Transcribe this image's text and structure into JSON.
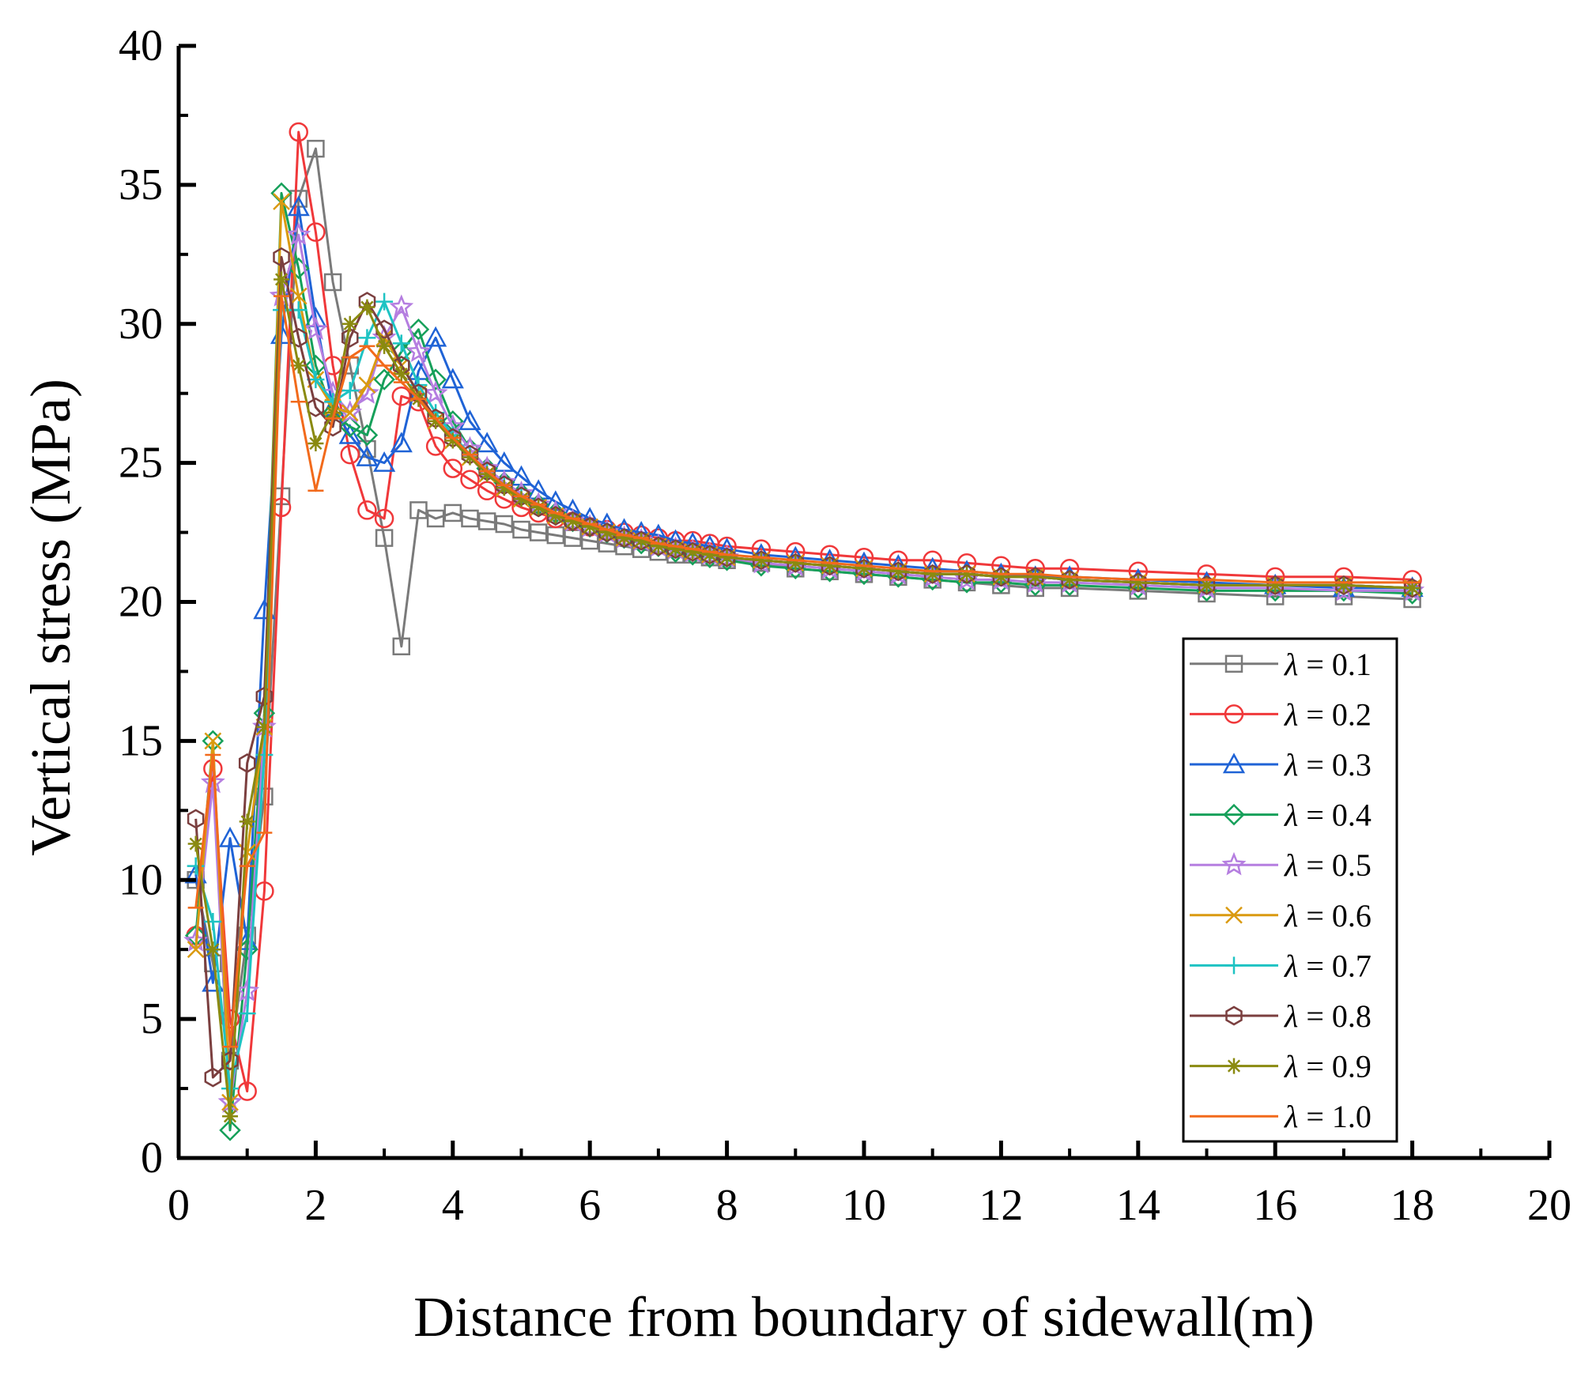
{
  "chart_data": {
    "type": "line",
    "title": "",
    "xlabel": "Distance from boundary of sidewall(m)",
    "ylabel": "Vertical stress (MPa)",
    "xlim": [
      0,
      20
    ],
    "ylim": [
      0,
      40
    ],
    "x_ticks": [
      0,
      2,
      4,
      6,
      8,
      10,
      12,
      14,
      16,
      18,
      20
    ],
    "y_ticks": [
      0,
      5,
      10,
      15,
      20,
      25,
      30,
      35,
      40
    ],
    "legend_position": "bottom-right",
    "series": [
      {
        "name": "λ = 0.1",
        "symbol": "λ",
        "value_label": " = 0.1",
        "color": "#7a7a7a",
        "marker": "square",
        "x": [
          0.25,
          0.5,
          0.75,
          1.0,
          1.25,
          1.5,
          1.75,
          2.0,
          2.25,
          2.5,
          2.75,
          3.0,
          3.25,
          3.5,
          3.75,
          4.0,
          4.25,
          4.5,
          4.75,
          5.0,
          5.25,
          5.5,
          5.75,
          6.0,
          6.25,
          6.5,
          6.75,
          7.0,
          7.25,
          7.5,
          7.75,
          8.0,
          8.5,
          9.0,
          9.5,
          10.0,
          10.5,
          11.0,
          11.5,
          12.0,
          12.5,
          13.0,
          14.0,
          15.0,
          16.0,
          17.0,
          18.0
        ],
        "y": [
          10.0,
          7.0,
          3.5,
          8.0,
          13.0,
          23.8,
          34.5,
          36.3,
          31.5,
          28.5,
          25.5,
          22.3,
          18.4,
          23.3,
          23.0,
          23.2,
          23.0,
          22.9,
          22.8,
          22.6,
          22.5,
          22.4,
          22.3,
          22.2,
          22.1,
          22.0,
          21.9,
          21.8,
          21.7,
          21.7,
          21.6,
          21.5,
          21.4,
          21.2,
          21.1,
          21.0,
          20.9,
          20.8,
          20.7,
          20.6,
          20.5,
          20.5,
          20.4,
          20.3,
          20.2,
          20.2,
          20.1
        ]
      },
      {
        "name": "λ = 0.2",
        "symbol": "λ",
        "value_label": " = 0.2",
        "color": "#f0383a",
        "marker": "circle",
        "x": [
          0.25,
          0.5,
          0.75,
          1.0,
          1.25,
          1.5,
          1.75,
          2.0,
          2.25,
          2.5,
          2.75,
          3.0,
          3.25,
          3.5,
          3.75,
          4.0,
          4.25,
          4.5,
          4.75,
          5.0,
          5.25,
          5.5,
          5.75,
          6.0,
          6.25,
          6.5,
          6.75,
          7.0,
          7.25,
          7.5,
          7.75,
          8.0,
          8.5,
          9.0,
          9.5,
          10.0,
          10.5,
          11.0,
          11.5,
          12.0,
          12.5,
          13.0,
          14.0,
          15.0,
          16.0,
          17.0,
          18.0
        ],
        "y": [
          8.0,
          14.0,
          5.0,
          2.4,
          9.6,
          23.4,
          36.9,
          33.3,
          28.5,
          25.3,
          23.3,
          23.0,
          27.4,
          27.2,
          25.6,
          24.8,
          24.4,
          24.0,
          23.7,
          23.4,
          23.2,
          23.0,
          22.9,
          22.7,
          22.6,
          22.5,
          22.4,
          22.3,
          22.2,
          22.2,
          22.1,
          22.0,
          21.9,
          21.8,
          21.7,
          21.6,
          21.5,
          21.5,
          21.4,
          21.3,
          21.2,
          21.2,
          21.1,
          21.0,
          20.9,
          20.9,
          20.8
        ]
      },
      {
        "name": "λ = 0.3",
        "symbol": "λ",
        "value_label": " = 0.3",
        "color": "#1f63d6",
        "marker": "triangle",
        "x": [
          0.25,
          0.5,
          0.75,
          1.0,
          1.25,
          1.5,
          1.75,
          2.0,
          2.25,
          2.5,
          2.75,
          3.0,
          3.25,
          3.5,
          3.75,
          4.0,
          4.25,
          4.5,
          4.75,
          5.0,
          5.25,
          5.5,
          5.75,
          6.0,
          6.25,
          6.5,
          6.75,
          7.0,
          7.25,
          7.5,
          7.75,
          8.0,
          8.5,
          9.0,
          9.5,
          10.0,
          10.5,
          11.0,
          11.5,
          12.0,
          12.5,
          13.0,
          14.0,
          15.0,
          16.0,
          17.0,
          18.0
        ],
        "y": [
          10.2,
          6.3,
          11.5,
          7.8,
          19.7,
          29.6,
          34.2,
          30.2,
          27.0,
          26.0,
          25.2,
          25.0,
          25.7,
          28.3,
          29.5,
          28.0,
          26.5,
          25.7,
          25.0,
          24.5,
          24.0,
          23.6,
          23.3,
          23.0,
          22.8,
          22.6,
          22.5,
          22.4,
          22.2,
          22.1,
          22.0,
          21.9,
          21.7,
          21.6,
          21.5,
          21.4,
          21.3,
          21.2,
          21.1,
          21.0,
          20.9,
          20.9,
          20.8,
          20.7,
          20.6,
          20.5,
          20.5
        ]
      },
      {
        "name": "λ = 0.4",
        "symbol": "λ",
        "value_label": " = 0.4",
        "color": "#16a05a",
        "marker": "diamond",
        "x": [
          0.25,
          0.5,
          0.75,
          1.0,
          1.25,
          1.5,
          1.75,
          2.0,
          2.25,
          2.5,
          2.75,
          3.0,
          3.25,
          3.5,
          3.75,
          4.0,
          4.25,
          4.5,
          4.75,
          5.0,
          5.25,
          5.5,
          5.75,
          6.0,
          6.25,
          6.5,
          6.75,
          7.0,
          7.25,
          7.5,
          7.75,
          8.0,
          8.5,
          9.0,
          9.5,
          10.0,
          10.5,
          11.0,
          11.5,
          12.0,
          12.5,
          13.0,
          14.0,
          15.0,
          16.0,
          17.0,
          18.0
        ],
        "y": [
          8.0,
          15.0,
          1.0,
          7.5,
          16.0,
          34.7,
          32.0,
          28.5,
          26.8,
          26.3,
          26.0,
          28.0,
          29.0,
          29.8,
          28.0,
          26.5,
          25.5,
          24.8,
          24.3,
          23.9,
          23.5,
          23.2,
          22.9,
          22.7,
          22.5,
          22.3,
          22.1,
          22.0,
          21.8,
          21.7,
          21.6,
          21.5,
          21.3,
          21.2,
          21.1,
          21.0,
          20.9,
          20.8,
          20.7,
          20.7,
          20.6,
          20.6,
          20.5,
          20.4,
          20.4,
          20.4,
          20.3
        ]
      },
      {
        "name": "λ = 0.5",
        "symbol": "λ",
        "value_label": " = 0.5",
        "color": "#b57ee0",
        "marker": "star",
        "x": [
          0.25,
          0.5,
          0.75,
          1.0,
          1.25,
          1.5,
          1.75,
          2.0,
          2.25,
          2.5,
          2.75,
          3.0,
          3.25,
          3.5,
          3.75,
          4.0,
          4.25,
          4.5,
          4.75,
          5.0,
          5.25,
          5.5,
          5.75,
          6.0,
          6.25,
          6.5,
          6.75,
          7.0,
          7.25,
          7.5,
          7.75,
          8.0,
          8.5,
          9.0,
          9.5,
          10.0,
          10.5,
          11.0,
          11.5,
          12.0,
          12.5,
          13.0,
          14.0,
          15.0,
          16.0,
          17.0,
          18.0
        ],
        "y": [
          7.8,
          13.5,
          2.0,
          6.0,
          15.5,
          31.0,
          33.2,
          29.8,
          27.5,
          26.8,
          27.5,
          29.5,
          30.6,
          29.0,
          27.5,
          26.3,
          25.5,
          24.8,
          24.3,
          23.9,
          23.5,
          23.2,
          22.9,
          22.7,
          22.5,
          22.3,
          22.2,
          22.0,
          21.9,
          21.8,
          21.7,
          21.6,
          21.4,
          21.3,
          21.2,
          21.1,
          21.0,
          20.9,
          20.8,
          20.8,
          20.7,
          20.7,
          20.6,
          20.5,
          20.5,
          20.4,
          20.4
        ]
      },
      {
        "name": "λ = 0.6",
        "symbol": "λ",
        "value_label": " = 0.6",
        "color": "#da9a10",
        "marker": "x",
        "x": [
          0.25,
          0.5,
          0.75,
          1.0,
          1.25,
          1.5,
          1.75,
          2.0,
          2.25,
          2.5,
          2.75,
          3.0,
          3.25,
          3.5,
          3.75,
          4.0,
          4.25,
          4.5,
          4.75,
          5.0,
          5.25,
          5.5,
          5.75,
          6.0,
          6.25,
          6.5,
          6.75,
          7.0,
          7.25,
          7.5,
          7.75,
          8.0,
          8.5,
          9.0,
          9.5,
          10.0,
          10.5,
          11.0,
          11.5,
          12.0,
          12.5,
          13.0,
          14.0,
          15.0,
          16.0,
          17.0,
          18.0
        ],
        "y": [
          7.5,
          15.0,
          2.0,
          11.0,
          15.5,
          34.4,
          31.0,
          28.0,
          27.0,
          26.8,
          27.8,
          29.5,
          28.5,
          27.5,
          26.5,
          25.8,
          25.2,
          24.6,
          24.1,
          23.7,
          23.4,
          23.1,
          22.9,
          22.7,
          22.5,
          22.3,
          22.2,
          22.0,
          21.9,
          21.8,
          21.7,
          21.6,
          21.5,
          21.4,
          21.3,
          21.2,
          21.1,
          21.0,
          21.0,
          20.9,
          20.9,
          20.8,
          20.7,
          20.6,
          20.6,
          20.6,
          20.5
        ]
      },
      {
        "name": "λ = 0.7",
        "symbol": "λ",
        "value_label": " = 0.7",
        "color": "#1ec3c3",
        "marker": "plus",
        "x": [
          0.25,
          0.5,
          0.75,
          1.0,
          1.25,
          1.5,
          1.75,
          2.0,
          2.25,
          2.5,
          2.75,
          3.0,
          3.25,
          3.5,
          3.75,
          4.0,
          4.25,
          4.5,
          4.75,
          5.0,
          5.25,
          5.5,
          5.75,
          6.0,
          6.25,
          6.5,
          6.75,
          7.0,
          7.25,
          7.5,
          7.75,
          8.0,
          8.5,
          9.0,
          9.5,
          10.0,
          10.5,
          11.0,
          11.5,
          12.0,
          12.5,
          13.0,
          14.0,
          15.0,
          16.0,
          17.0,
          18.0
        ],
        "y": [
          10.5,
          8.5,
          2.5,
          5.2,
          14.5,
          30.5,
          30.5,
          28.0,
          27.2,
          27.6,
          29.5,
          30.8,
          29.3,
          27.8,
          26.8,
          26.0,
          25.3,
          24.7,
          24.2,
          23.8,
          23.4,
          23.1,
          22.9,
          22.7,
          22.5,
          22.3,
          22.2,
          22.0,
          21.9,
          21.8,
          21.7,
          21.6,
          21.5,
          21.4,
          21.3,
          21.2,
          21.1,
          21.0,
          21.0,
          20.9,
          20.9,
          20.8,
          20.7,
          20.6,
          20.6,
          20.6,
          20.5
        ]
      },
      {
        "name": "λ = 0.8",
        "symbol": "λ",
        "value_label": " = 0.8",
        "color": "#7b3f3f",
        "marker": "hexagon",
        "x": [
          0.25,
          0.5,
          0.75,
          1.0,
          1.25,
          1.5,
          1.75,
          2.0,
          2.25,
          2.5,
          2.75,
          3.0,
          3.25,
          3.5,
          3.75,
          4.0,
          4.25,
          4.5,
          4.75,
          5.0,
          5.25,
          5.5,
          5.75,
          6.0,
          6.25,
          6.5,
          6.75,
          7.0,
          7.25,
          7.5,
          7.75,
          8.0,
          8.5,
          9.0,
          9.5,
          10.0,
          10.5,
          11.0,
          11.5,
          12.0,
          12.5,
          13.0,
          14.0,
          15.0,
          16.0,
          17.0,
          18.0
        ],
        "y": [
          12.2,
          2.9,
          3.5,
          14.2,
          16.6,
          32.4,
          29.5,
          27.0,
          26.3,
          29.5,
          30.8,
          29.8,
          28.5,
          27.5,
          26.6,
          25.9,
          25.3,
          24.7,
          24.2,
          23.8,
          23.4,
          23.1,
          22.9,
          22.7,
          22.5,
          22.3,
          22.2,
          22.0,
          21.9,
          21.8,
          21.7,
          21.6,
          21.5,
          21.4,
          21.3,
          21.2,
          21.1,
          21.0,
          21.0,
          20.9,
          20.9,
          20.8,
          20.7,
          20.6,
          20.6,
          20.6,
          20.5
        ]
      },
      {
        "name": "λ = 0.9",
        "symbol": "λ",
        "value_label": " = 0.9",
        "color": "#8a8a10",
        "marker": "asterisk",
        "x": [
          0.25,
          0.5,
          0.75,
          1.0,
          1.25,
          1.5,
          1.75,
          2.0,
          2.25,
          2.5,
          2.75,
          3.0,
          3.25,
          3.5,
          3.75,
          4.0,
          4.25,
          4.5,
          4.75,
          5.0,
          5.25,
          5.5,
          5.75,
          6.0,
          6.25,
          6.5,
          6.75,
          7.0,
          7.25,
          7.5,
          7.75,
          8.0,
          8.5,
          9.0,
          9.5,
          10.0,
          10.5,
          11.0,
          11.5,
          12.0,
          12.5,
          13.0,
          14.0,
          15.0,
          16.0,
          17.0,
          18.0
        ],
        "y": [
          11.3,
          7.5,
          1.5,
          12.1,
          15.5,
          31.6,
          28.5,
          25.7,
          26.8,
          30.0,
          30.6,
          29.2,
          28.2,
          27.3,
          26.5,
          25.8,
          25.2,
          24.6,
          24.1,
          23.7,
          23.4,
          23.1,
          22.9,
          22.7,
          22.5,
          22.3,
          22.2,
          22.0,
          21.9,
          21.8,
          21.7,
          21.6,
          21.5,
          21.4,
          21.3,
          21.2,
          21.1,
          21.0,
          21.0,
          20.9,
          20.9,
          20.8,
          20.7,
          20.6,
          20.6,
          20.6,
          20.5
        ]
      },
      {
        "name": "λ = 1.0",
        "symbol": "λ",
        "value_label": " = 1.0",
        "color": "#f26a1b",
        "marker": "dash",
        "x": [
          0.25,
          0.5,
          0.75,
          1.0,
          1.25,
          1.5,
          1.75,
          2.0,
          2.25,
          2.5,
          2.75,
          3.0,
          3.25,
          3.5,
          3.75,
          4.0,
          4.25,
          4.5,
          4.75,
          5.0,
          5.25,
          5.5,
          5.75,
          6.0,
          6.25,
          6.5,
          6.75,
          7.0,
          7.25,
          7.5,
          7.75,
          8.0,
          8.5,
          9.0,
          9.5,
          10.0,
          10.5,
          11.0,
          11.5,
          12.0,
          12.5,
          13.0,
          14.0,
          15.0,
          16.0,
          17.0,
          18.0
        ],
        "y": [
          9.0,
          14.5,
          4.0,
          10.5,
          11.7,
          31.0,
          27.2,
          24.0,
          26.6,
          28.8,
          29.2,
          28.5,
          27.9,
          27.3,
          26.6,
          25.9,
          25.3,
          24.7,
          24.2,
          23.8,
          23.5,
          23.2,
          23.0,
          22.8,
          22.6,
          22.4,
          22.3,
          22.1,
          22.0,
          21.9,
          21.8,
          21.7,
          21.6,
          21.5,
          21.4,
          21.3,
          21.2,
          21.1,
          21.1,
          21.0,
          21.0,
          20.9,
          20.8,
          20.8,
          20.7,
          20.7,
          20.7
        ]
      }
    ]
  }
}
